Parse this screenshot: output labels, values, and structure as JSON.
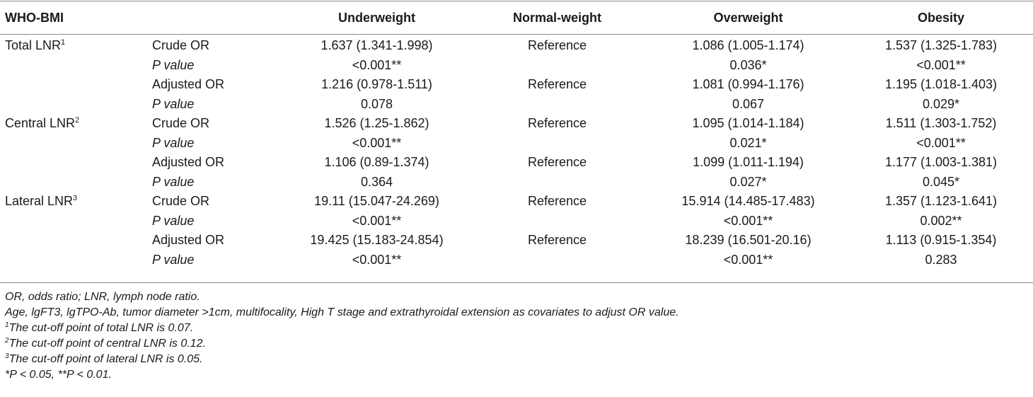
{
  "table": {
    "headers": [
      "WHO-BMI",
      "",
      "Underweight",
      "Normal-weight",
      "Overweight",
      "Obesity"
    ],
    "groups": [
      {
        "label": "Total LNR",
        "sup": "1",
        "rows": [
          {
            "stat": "Crude OR",
            "italic": false,
            "values": [
              "1.637 (1.341-1.998)",
              "Reference",
              "1.086 (1.005-1.174)",
              "1.537 (1.325-1.783)"
            ]
          },
          {
            "stat": "P value",
            "italic": true,
            "values": [
              "<0.001**",
              "",
              "0.036*",
              "<0.001**"
            ]
          },
          {
            "stat": "Adjusted OR",
            "italic": false,
            "values": [
              "1.216 (0.978-1.511)",
              "Reference",
              "1.081 (0.994-1.176)",
              "1.195 (1.018-1.403)"
            ]
          },
          {
            "stat": "P value",
            "italic": true,
            "values": [
              "0.078",
              "",
              "0.067",
              "0.029*"
            ]
          }
        ]
      },
      {
        "label": "Central LNR",
        "sup": "2",
        "rows": [
          {
            "stat": "Crude OR",
            "italic": false,
            "values": [
              "1.526 (1.25-1.862)",
              "Reference",
              "1.095 (1.014-1.184)",
              "1.511 (1.303-1.752)"
            ]
          },
          {
            "stat": "P value",
            "italic": true,
            "values": [
              "<0.001**",
              "",
              "0.021*",
              "<0.001**"
            ]
          },
          {
            "stat": "Adjusted OR",
            "italic": false,
            "values": [
              "1.106 (0.89-1.374)",
              "Reference",
              "1.099 (1.011-1.194)",
              "1.177 (1.003-1.381)"
            ]
          },
          {
            "stat": "P value",
            "italic": true,
            "values": [
              "0.364",
              "",
              "0.027*",
              "0.045*"
            ]
          }
        ]
      },
      {
        "label": "Lateral LNR",
        "sup": "3",
        "rows": [
          {
            "stat": "Crude OR",
            "italic": false,
            "values": [
              "19.11 (15.047-24.269)",
              "Reference",
              "15.914 (14.485-17.483)",
              "1.357 (1.123-1.641)"
            ]
          },
          {
            "stat": "P value",
            "italic": true,
            "values": [
              "<0.001**",
              "",
              "<0.001**",
              "0.002**"
            ]
          },
          {
            "stat": "Adjusted OR",
            "italic": false,
            "values": [
              "19.425 (15.183-24.854)",
              "Reference",
              "18.239 (16.501-20.16)",
              "1.113 (0.915-1.354)"
            ]
          },
          {
            "stat": "P value",
            "italic": true,
            "values": [
              "<0.001**",
              "",
              "<0.001**",
              "0.283"
            ]
          }
        ]
      }
    ]
  },
  "footnotes": [
    {
      "sup": "",
      "text": "OR, odds ratio; LNR, lymph node ratio."
    },
    {
      "sup": "",
      "text": "Age, lgFT3, lgTPO-Ab, tumor diameter >1cm, multifocality, High T stage and extrathyroidal extension as covariates to adjust OR value."
    },
    {
      "sup": "1",
      "text": "The cut-off point of total LNR is 0.07."
    },
    {
      "sup": "2",
      "text": "The cut-off point of central LNR is 0.12."
    },
    {
      "sup": "3",
      "text": "The cut-off point of lateral LNR is 0.05."
    },
    {
      "sup": "",
      "text": "*P < 0.05, **P < 0.01."
    }
  ]
}
